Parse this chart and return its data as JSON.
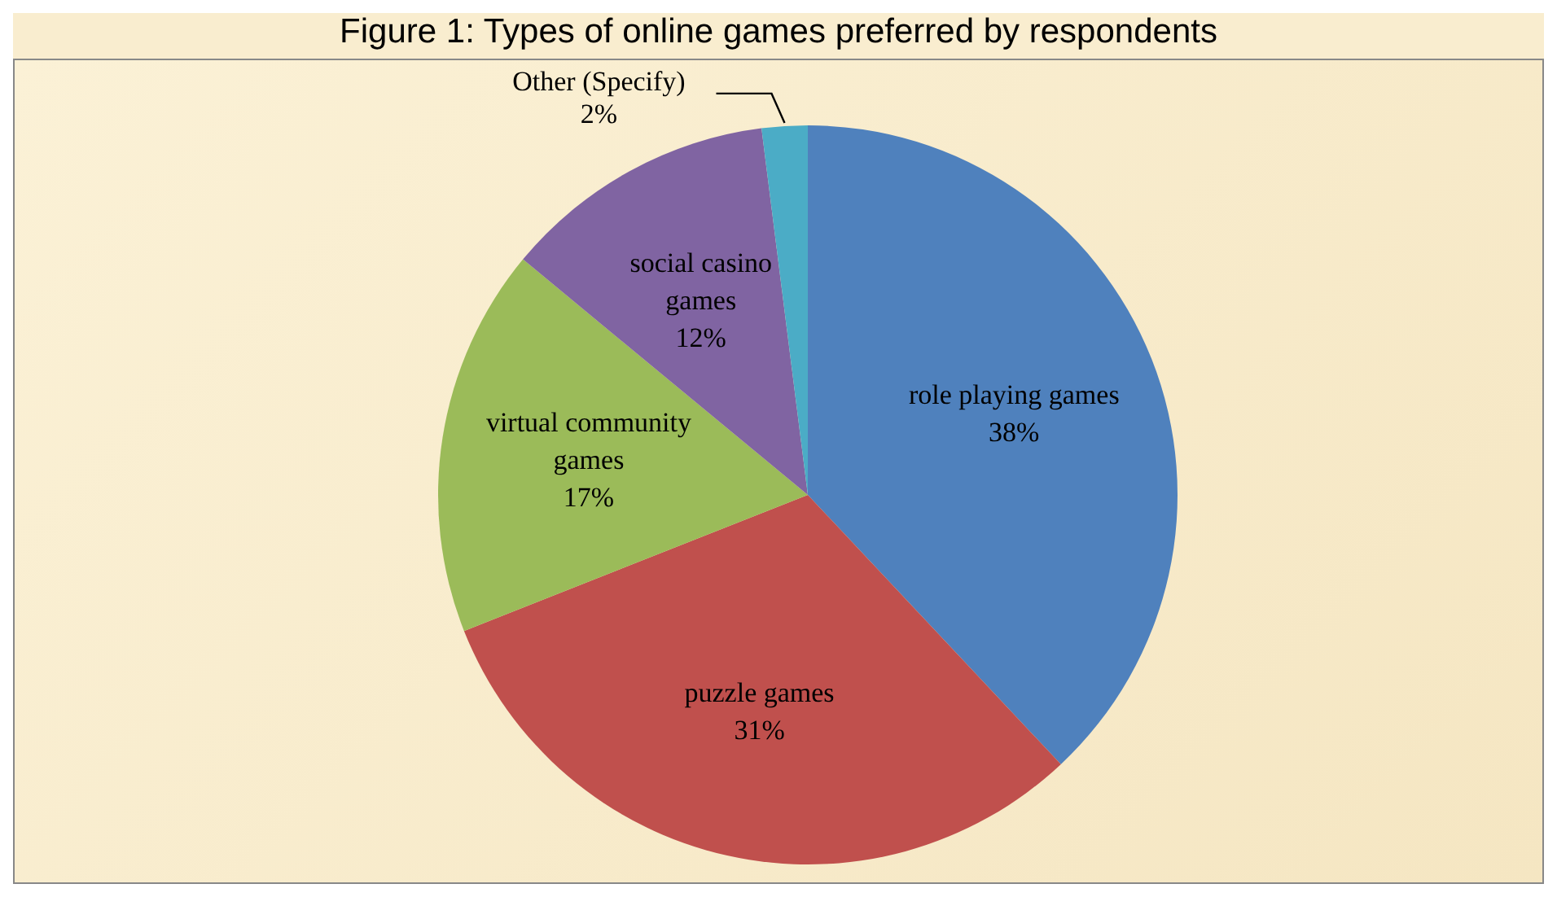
{
  "chart_data": {
    "type": "pie",
    "title": "Figure 1: Types of online games preferred by respondents",
    "categories": [
      "role playing games",
      "puzzle games",
      "virtual community games",
      "social casino games",
      "Other (Specify)"
    ],
    "values": [
      38,
      31,
      17,
      12,
      2
    ],
    "value_labels": [
      "38%",
      "31%",
      "17%",
      "12%",
      "2%"
    ],
    "colors": [
      "#4f81bd",
      "#c0504d",
      "#9bbb59",
      "#8064a2",
      "#4bacc6"
    ],
    "legend": false
  }
}
